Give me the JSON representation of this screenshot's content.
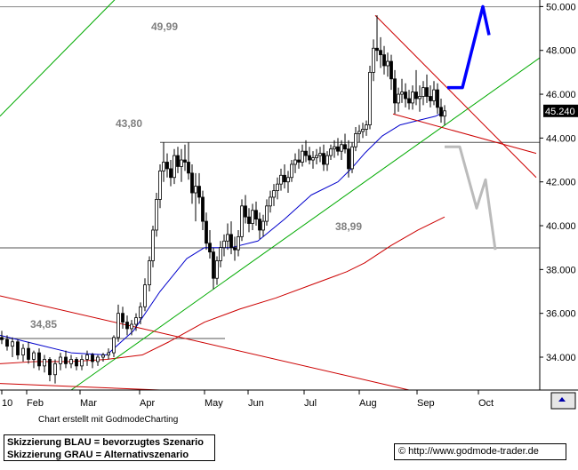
{
  "chart_data": {
    "type": "candlestick",
    "y_ticks": [
      "50.000",
      "48.000",
      "46.000",
      "44.000",
      "42.000",
      "40.000",
      "38.000",
      "36.000",
      "34.000"
    ],
    "x_ticks": [
      "10",
      "Feb",
      "Mar",
      "Apr",
      "May",
      "Jun",
      "Jul",
      "Aug",
      "Sep",
      "Oct"
    ],
    "ylim": [
      32.5,
      50.3
    ],
    "last_price": "45.240",
    "level_labels": [
      "49,99",
      "43,80",
      "38,99",
      "34,85"
    ],
    "levels": [
      49.99,
      43.8,
      38.99,
      34.85
    ],
    "colors": {
      "up": "#000000",
      "ma_short": "#0000cc",
      "ma_long": "#cc0000",
      "trend_up": "#00aa00",
      "trend_down": "#cc0000",
      "scenario_blue": "#0000ff",
      "scenario_gray": "#bbbbbb"
    },
    "series": [
      {
        "values": [
          [
            0,
            34.9,
            35.2,
            34.6,
            34.8
          ],
          [
            6,
            34.8,
            35.0,
            34.3,
            34.5
          ],
          [
            12,
            34.5,
            34.9,
            34.0,
            34.7
          ],
          [
            18,
            34.7,
            34.8,
            33.9,
            34.1
          ],
          [
            24,
            34.1,
            34.6,
            33.8,
            34.4
          ],
          [
            30,
            34.4,
            34.7,
            33.7,
            33.9
          ],
          [
            36,
            33.9,
            34.3,
            33.5,
            34.2
          ],
          [
            42,
            34.2,
            34.4,
            33.4,
            33.6
          ],
          [
            48,
            33.6,
            34.1,
            33.3,
            33.9
          ],
          [
            54,
            33.9,
            34.0,
            32.9,
            33.2
          ],
          [
            60,
            33.2,
            33.9,
            32.8,
            33.7
          ],
          [
            66,
            33.7,
            34.2,
            33.4,
            34.0
          ],
          [
            72,
            34.0,
            34.3,
            33.5,
            33.7
          ],
          [
            78,
            33.7,
            34.1,
            33.5,
            33.9
          ],
          [
            84,
            33.9,
            34.0,
            33.4,
            33.6
          ],
          [
            90,
            33.6,
            34.1,
            33.4,
            33.9
          ],
          [
            96,
            33.9,
            34.3,
            33.6,
            34.1
          ],
          [
            102,
            34.1,
            34.2,
            33.5,
            33.8
          ],
          [
            108,
            33.8,
            34.1,
            33.6,
            34.0
          ],
          [
            114,
            34.0,
            34.2,
            33.8,
            34.1
          ],
          [
            120,
            34.1,
            34.4,
            33.9,
            34.2
          ],
          [
            126,
            34.2,
            35.0,
            34.0,
            34.9
          ],
          [
            131,
            34.9,
            36.4,
            34.7,
            36.0
          ],
          [
            136,
            36.0,
            36.3,
            35.3,
            35.6
          ],
          [
            141,
            35.6,
            35.9,
            35.0,
            35.3
          ],
          [
            146,
            35.3,
            35.7,
            35.0,
            35.5
          ],
          [
            151,
            35.5,
            36.0,
            35.2,
            35.8
          ],
          [
            156,
            35.8,
            36.5,
            35.5,
            36.3
          ],
          [
            161,
            36.3,
            37.6,
            36.1,
            37.3
          ],
          [
            166,
            37.3,
            38.6,
            37.0,
            38.4
          ],
          [
            170,
            38.4,
            40.0,
            38.1,
            39.8
          ],
          [
            174,
            39.8,
            41.5,
            39.5,
            41.2
          ],
          [
            178,
            41.2,
            42.8,
            40.8,
            42.5
          ],
          [
            182,
            42.5,
            43.8,
            42.0,
            42.9
          ],
          [
            186,
            42.9,
            43.3,
            42.2,
            42.6
          ],
          [
            190,
            42.6,
            43.0,
            41.8,
            42.2
          ],
          [
            194,
            42.2,
            43.5,
            41.9,
            43.2
          ],
          [
            198,
            43.2,
            43.6,
            42.4,
            42.7
          ],
          [
            202,
            42.7,
            43.5,
            42.0,
            43.0
          ],
          [
            206,
            43.0,
            43.7,
            42.5,
            42.9
          ],
          [
            210,
            42.9,
            43.8,
            42.1,
            42.4
          ],
          [
            214,
            42.4,
            42.8,
            41.0,
            41.5
          ],
          [
            218,
            41.5,
            42.4,
            40.2,
            41.8
          ],
          [
            222,
            41.8,
            42.4,
            41.0,
            41.3
          ],
          [
            226,
            41.3,
            41.6,
            39.8,
            40.2
          ],
          [
            230,
            40.2,
            40.6,
            38.9,
            39.2
          ],
          [
            234,
            39.2,
            39.8,
            38.5,
            38.8
          ],
          [
            238,
            38.8,
            39.0,
            37.1,
            37.6
          ],
          [
            242,
            37.6,
            38.6,
            37.3,
            38.4
          ],
          [
            246,
            38.4,
            39.3,
            38.1,
            39.0
          ],
          [
            250,
            39.0,
            39.6,
            38.6,
            39.3
          ],
          [
            254,
            39.3,
            40.1,
            38.9,
            39.6
          ],
          [
            258,
            39.6,
            40.2,
            38.7,
            39.0
          ],
          [
            262,
            39.0,
            39.5,
            38.4,
            38.9
          ],
          [
            266,
            38.9,
            39.8,
            38.6,
            39.5
          ],
          [
            270,
            39.5,
            41.2,
            39.3,
            40.9
          ],
          [
            274,
            40.9,
            41.4,
            40.1,
            40.4
          ],
          [
            278,
            40.4,
            40.8,
            39.7,
            40.1
          ],
          [
            282,
            40.1,
            41.0,
            39.8,
            40.7
          ],
          [
            286,
            40.7,
            41.1,
            40.0,
            40.3
          ],
          [
            290,
            40.3,
            40.6,
            39.4,
            39.8
          ],
          [
            294,
            39.8,
            40.5,
            39.5,
            40.2
          ],
          [
            298,
            40.2,
            41.2,
            40.0,
            40.9
          ],
          [
            302,
            40.9,
            41.6,
            40.6,
            41.3
          ],
          [
            306,
            41.3,
            41.9,
            40.9,
            41.6
          ],
          [
            310,
            41.6,
            42.2,
            41.2,
            41.9
          ],
          [
            314,
            41.9,
            42.6,
            41.6,
            42.3
          ],
          [
            318,
            42.3,
            42.8,
            41.7,
            42.0
          ],
          [
            322,
            42.0,
            42.5,
            41.5,
            42.2
          ],
          [
            326,
            42.2,
            43.0,
            42.0,
            42.8
          ],
          [
            330,
            42.8,
            43.3,
            42.4,
            43.0
          ],
          [
            334,
            43.0,
            43.5,
            42.6,
            42.9
          ],
          [
            338,
            42.9,
            43.7,
            42.7,
            43.4
          ],
          [
            342,
            43.4,
            43.9,
            42.9,
            43.2
          ],
          [
            346,
            43.2,
            43.6,
            42.8,
            43.0
          ],
          [
            350,
            43.0,
            43.4,
            42.6,
            43.1
          ],
          [
            354,
            43.1,
            43.5,
            42.8,
            43.2
          ],
          [
            358,
            43.2,
            43.6,
            42.9,
            43.3
          ],
          [
            362,
            43.3,
            43.7,
            42.5,
            42.8
          ],
          [
            366,
            42.8,
            43.4,
            42.5,
            43.2
          ],
          [
            370,
            43.2,
            43.7,
            43.0,
            43.5
          ],
          [
            374,
            43.5,
            43.9,
            43.1,
            43.6
          ],
          [
            378,
            43.6,
            44.0,
            43.2,
            43.4
          ],
          [
            382,
            43.4,
            43.9,
            43.0,
            43.7
          ],
          [
            386,
            43.7,
            44.2,
            43.3,
            43.5
          ],
          [
            390,
            43.5,
            43.9,
            42.2,
            42.6
          ],
          [
            394,
            42.6,
            43.8,
            42.4,
            43.6
          ],
          [
            398,
            43.6,
            44.5,
            43.4,
            44.2
          ],
          [
            402,
            44.2,
            44.6,
            43.8,
            44.3
          ],
          [
            406,
            44.3,
            44.7,
            44.0,
            44.4
          ],
          [
            410,
            44.4,
            44.8,
            44.1,
            44.6
          ],
          [
            414,
            44.6,
            47.3,
            44.4,
            47.0
          ],
          [
            418,
            47.0,
            48.5,
            46.6,
            48.1
          ],
          [
            422,
            48.1,
            49.6,
            47.5,
            48.0
          ],
          [
            426,
            48.0,
            48.6,
            47.2,
            47.8
          ],
          [
            430,
            47.8,
            48.2,
            46.9,
            47.3
          ],
          [
            434,
            47.3,
            47.9,
            46.8,
            47.5
          ],
          [
            438,
            47.5,
            47.8,
            46.2,
            46.7
          ],
          [
            442,
            46.7,
            47.1,
            45.1,
            45.6
          ],
          [
            446,
            45.6,
            46.3,
            45.2,
            46.0
          ],
          [
            450,
            46.0,
            46.7,
            45.6,
            46.1
          ],
          [
            454,
            46.1,
            46.5,
            45.4,
            45.8
          ],
          [
            458,
            45.8,
            46.2,
            45.3,
            45.6
          ],
          [
            462,
            45.6,
            46.4,
            45.3,
            46.1
          ],
          [
            466,
            46.1,
            47.1,
            45.5,
            45.8
          ],
          [
            470,
            45.8,
            46.4,
            45.2,
            45.9
          ],
          [
            474,
            45.9,
            46.6,
            45.5,
            46.3
          ],
          [
            478,
            46.3,
            46.9,
            45.6,
            45.9
          ],
          [
            482,
            45.9,
            46.4,
            45.4,
            45.7
          ],
          [
            486,
            45.7,
            46.6,
            45.5,
            46.2
          ],
          [
            490,
            46.2,
            46.5,
            45.1,
            45.4
          ],
          [
            494,
            45.4,
            45.8,
            44.7,
            45.0
          ],
          [
            498,
            45.0,
            45.5,
            44.6,
            45.24
          ]
        ]
      }
    ],
    "ma_short": [
      [
        0,
        35.0
      ],
      [
        40,
        34.6
      ],
      [
        80,
        34.2
      ],
      [
        120,
        34.1
      ],
      [
        150,
        35.2
      ],
      [
        180,
        37.0
      ],
      [
        210,
        38.5
      ],
      [
        230,
        39.0
      ],
      [
        260,
        39.0
      ],
      [
        290,
        39.3
      ],
      [
        320,
        40.3
      ],
      [
        350,
        41.4
      ],
      [
        380,
        42.0
      ],
      [
        395,
        42.6
      ],
      [
        410,
        43.3
      ],
      [
        430,
        44.1
      ],
      [
        450,
        44.6
      ],
      [
        470,
        44.8
      ],
      [
        490,
        45.0
      ],
      [
        500,
        45.2
      ]
    ],
    "ma_long": [
      [
        0,
        33.7
      ],
      [
        40,
        33.8
      ],
      [
        80,
        33.8
      ],
      [
        120,
        33.9
      ],
      [
        160,
        34.1
      ],
      [
        190,
        34.7
      ],
      [
        230,
        35.6
      ],
      [
        270,
        36.2
      ],
      [
        310,
        36.7
      ],
      [
        350,
        37.3
      ],
      [
        390,
        37.9
      ],
      [
        410,
        38.3
      ],
      [
        440,
        39.1
      ],
      [
        470,
        39.8
      ],
      [
        500,
        40.4
      ]
    ],
    "trend_up": [
      [
        80,
        32.5
      ],
      [
        650,
        48.9
      ]
    ],
    "trend_up_upper": [
      [
        0,
        45.0
      ],
      [
        170,
        52.0
      ]
    ],
    "trend_down_long": [
      [
        0,
        36.8
      ],
      [
        460,
        32.5
      ]
    ],
    "trend_down_long2": [
      [
        0,
        32.8
      ],
      [
        180,
        32.5
      ]
    ],
    "fan_top": [
      [
        422,
        49.6
      ],
      [
        603,
        42.2
      ]
    ],
    "fan_bottom": [
      [
        442,
        45.1
      ],
      [
        603,
        43.3
      ]
    ],
    "scenario_blue": [
      [
        503,
        46.3
      ],
      [
        520,
        46.3
      ],
      [
        543,
        50.0
      ],
      [
        550,
        48.7
      ]
    ],
    "scenario_gray": [
      [
        500,
        43.6
      ],
      [
        517,
        43.6
      ],
      [
        536,
        40.8
      ],
      [
        546,
        42.1
      ],
      [
        557,
        38.9
      ]
    ]
  },
  "credit": "Chart erstellt mit GodmodeCharting",
  "legend": {
    "line1": "Skizzierung BLAU = bevorzugtes Szenario",
    "line2": "Skizzierung GRAU = Alternativszenario"
  },
  "url": "http://www.godmode-trader.de"
}
